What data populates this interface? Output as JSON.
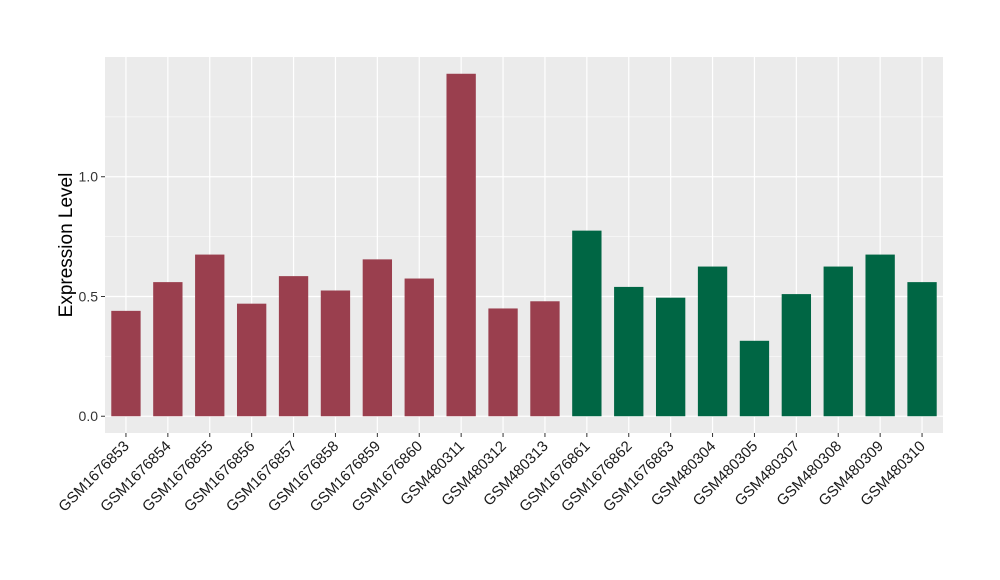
{
  "chart_data": {
    "type": "bar",
    "title": "",
    "xlabel": "",
    "ylabel": "Expression Level",
    "ylim": [
      -0.07,
      1.5
    ],
    "yticks": [
      0.0,
      0.5,
      1.0
    ],
    "ytick_labels": [
      "0.0",
      "0.5",
      "1.0"
    ],
    "grid": true,
    "categories": [
      "GSM1676853",
      "GSM1676854",
      "GSM1676855",
      "GSM1676856",
      "GSM1676857",
      "GSM1676858",
      "GSM1676859",
      "GSM1676860",
      "GSM480311",
      "GSM480312",
      "GSM480313",
      "GSM1676861",
      "GSM1676862",
      "GSM1676863",
      "GSM480304",
      "GSM480305",
      "GSM480307",
      "GSM480308",
      "GSM480309",
      "GSM480310"
    ],
    "values": [
      0.44,
      0.56,
      0.675,
      0.47,
      0.585,
      0.525,
      0.655,
      0.575,
      1.43,
      0.45,
      0.48,
      0.775,
      0.54,
      0.495,
      0.625,
      0.315,
      0.51,
      0.625,
      0.675,
      0.56
    ],
    "bar_colors": [
      "#9a3f4e",
      "#9a3f4e",
      "#9a3f4e",
      "#9a3f4e",
      "#9a3f4e",
      "#9a3f4e",
      "#9a3f4e",
      "#9a3f4e",
      "#9a3f4e",
      "#9a3f4e",
      "#9a3f4e",
      "#006644",
      "#006644",
      "#006644",
      "#006644",
      "#006644",
      "#006644",
      "#006644",
      "#006644",
      "#006644"
    ],
    "panel_background": "#ebebeb",
    "gridline_color": "#ffffff"
  }
}
